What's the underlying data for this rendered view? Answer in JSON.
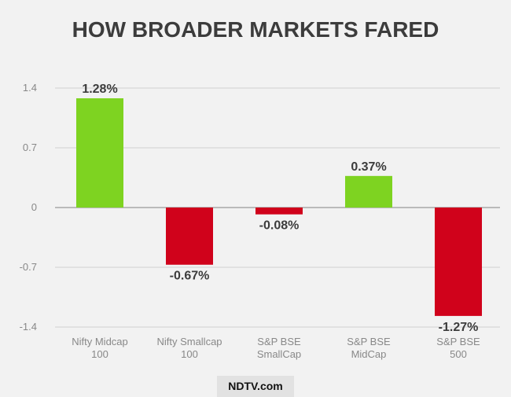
{
  "title": "HOW BROADER MARKETS FARED",
  "watermark": "NDTV.com",
  "colors": {
    "positive": "#7ed321",
    "negative": "#d0021b",
    "grid": "#d0d0d0",
    "text": "#888888",
    "label": "#3c3c3c"
  },
  "chart_data": {
    "type": "bar",
    "title": "HOW BROADER MARKETS FARED",
    "xlabel": "",
    "ylabel": "",
    "ylim": [
      -1.4,
      1.4
    ],
    "yticks": [
      "1.4",
      "0.7",
      "0",
      "-0.7",
      "-1.4"
    ],
    "ytick_values": [
      1.4,
      0.7,
      0,
      -0.7,
      -1.4
    ],
    "categories": [
      [
        "Nifty Midcap",
        "100"
      ],
      [
        "Nifty Smallcap",
        "100"
      ],
      [
        "S&P BSE",
        "SmallCap"
      ],
      [
        "S&P BSE",
        "MidCap"
      ],
      [
        "S&P BSE",
        "500"
      ]
    ],
    "values": [
      1.28,
      -0.67,
      -0.08,
      0.37,
      -1.27
    ],
    "data_labels": [
      "1.28%",
      "-0.67%",
      "-0.08%",
      "0.37%",
      "-1.27%"
    ]
  }
}
